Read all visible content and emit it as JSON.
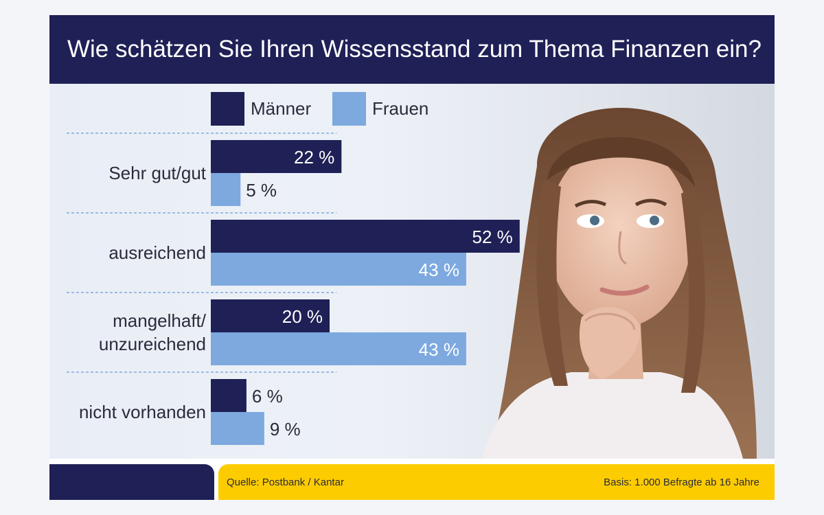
{
  "title": "Wie schätzen Sie Ihren Wissensstand zum Thema Finanzen ein?",
  "colors": {
    "maenner": "#1f2056",
    "frauen": "#7da9df",
    "header_bg": "#1f2056",
    "footer_accent": "#fdcc00"
  },
  "chart_data": {
    "type": "bar",
    "orientation": "horizontal",
    "categories": [
      [
        "Sehr gut/gut"
      ],
      [
        "ausreichend"
      ],
      [
        "mangelhaft/",
        "unzureichend"
      ],
      [
        "nicht vorhanden"
      ]
    ],
    "series": [
      {
        "name": "Männer",
        "values": [
          22,
          52,
          20,
          6
        ],
        "labels": [
          "22 %",
          "52 %",
          "20 %",
          "6 %"
        ]
      },
      {
        "name": "Frauen",
        "values": [
          5,
          43,
          43,
          9
        ],
        "labels": [
          "5 %",
          "43 %",
          "43 %",
          "9 %"
        ]
      }
    ],
    "legend": "top",
    "grid": "dashed separators between categories"
  },
  "footer": {
    "source": "Quelle: Postbank / Kantar",
    "basis": "Basis: 1.000 Befragte ab 16 Jahre"
  },
  "image": {
    "description_icon": "woman-thinking-photo"
  }
}
